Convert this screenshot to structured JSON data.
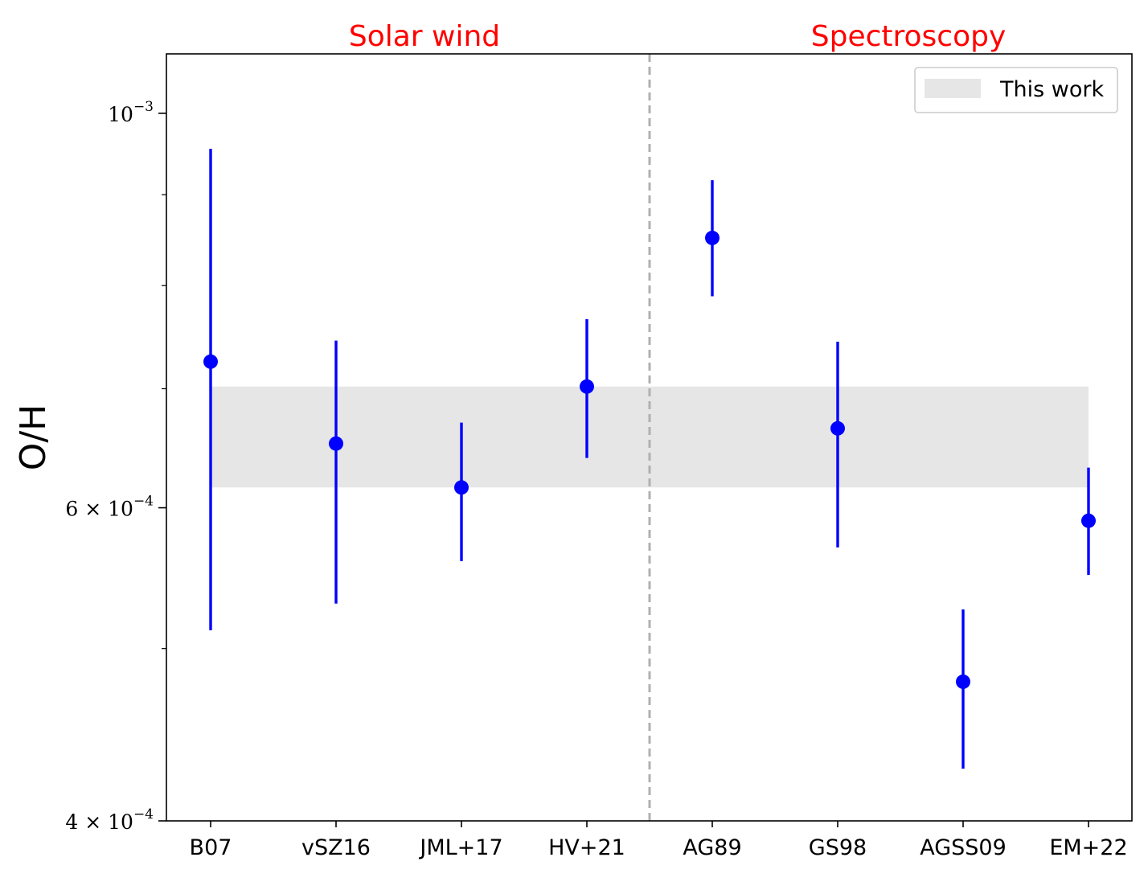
{
  "chart_data": {
    "type": "scatter",
    "title": "",
    "xlabel": "",
    "ylabel": "O/H",
    "yscale": "log",
    "ylim": [
      0.0004,
      0.00108
    ],
    "grid": false,
    "legend_placement": "top-right",
    "categories": [
      "B07",
      "vSZ16",
      "JML+17",
      "HV+21",
      "AG89",
      "GS98",
      "AGSS09",
      "EM+22"
    ],
    "series": [
      {
        "values": [
          0.000725,
          0.000652,
          0.000616,
          0.000702,
          0.000851,
          0.000665,
          0.000479,
          0.00059
        ],
        "err_low": [
          0.000213,
          0.000122,
          5.6e-05,
          6.2e-05,
          6.2e-05,
          9.5e-05,
          5.1e-05,
          4e-05
        ],
        "err_high": [
          0.00023,
          9.3e-05,
          5.4e-05,
          6.4e-05,
          6.6e-05,
          7.9e-05,
          4.7e-05,
          4.2e-05
        ],
        "color": "#0000ff"
      }
    ],
    "band": {
      "label": "This work",
      "ymin": 0.000616,
      "ymax": 0.000702,
      "color": "#e6e6e6"
    },
    "divider_after_index": 3,
    "group_labels": [
      {
        "text": "Solar wind",
        "color": "#ff0000"
      },
      {
        "text": "Spectroscopy",
        "color": "#ff0000"
      }
    ],
    "yticks": [
      {
        "value": 0.001,
        "base": "10",
        "exp": "−3"
      },
      {
        "value": 0.0006,
        "base": "6 × 10",
        "exp": "−4"
      },
      {
        "value": 0.0004,
        "base": "4 × 10",
        "exp": "−4"
      }
    ],
    "yminor_ticks": [
      0.0005,
      0.0007,
      0.0008,
      0.0009
    ]
  }
}
